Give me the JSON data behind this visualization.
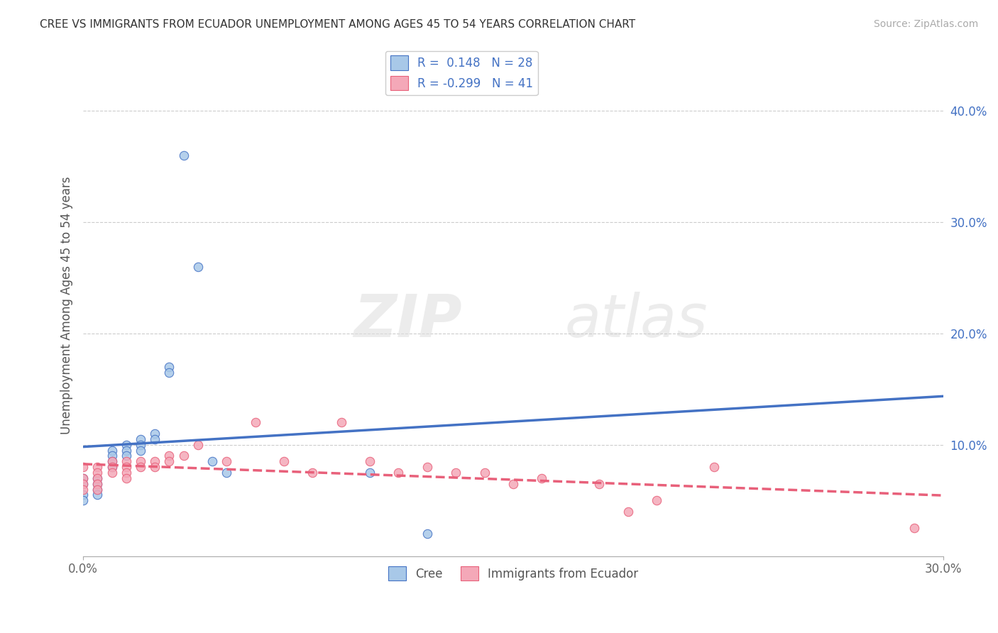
{
  "title": "CREE VS IMMIGRANTS FROM ECUADOR UNEMPLOYMENT AMONG AGES 45 TO 54 YEARS CORRELATION CHART",
  "source": "Source: ZipAtlas.com",
  "ylabel": "Unemployment Among Ages 45 to 54 years",
  "xlim": [
    0.0,
    0.3
  ],
  "ylim": [
    0.0,
    0.45
  ],
  "cree_color": "#A8C8E8",
  "ecuador_color": "#F4A8B8",
  "cree_line_color": "#4472C4",
  "ecuador_line_color": "#E8607A",
  "R_cree": 0.148,
  "N_cree": 28,
  "R_ecuador": -0.299,
  "N_ecuador": 41,
  "legend_text_color": "#4472C4",
  "cree_scatter": [
    [
      0.0,
      0.07
    ],
    [
      0.0,
      0.065
    ],
    [
      0.0,
      0.055
    ],
    [
      0.0,
      0.05
    ],
    [
      0.005,
      0.07
    ],
    [
      0.005,
      0.065
    ],
    [
      0.005,
      0.06
    ],
    [
      0.005,
      0.055
    ],
    [
      0.01,
      0.095
    ],
    [
      0.01,
      0.09
    ],
    [
      0.01,
      0.085
    ],
    [
      0.01,
      0.08
    ],
    [
      0.015,
      0.1
    ],
    [
      0.015,
      0.095
    ],
    [
      0.015,
      0.09
    ],
    [
      0.02,
      0.105
    ],
    [
      0.02,
      0.1
    ],
    [
      0.02,
      0.095
    ],
    [
      0.025,
      0.11
    ],
    [
      0.025,
      0.105
    ],
    [
      0.03,
      0.17
    ],
    [
      0.03,
      0.165
    ],
    [
      0.035,
      0.36
    ],
    [
      0.04,
      0.26
    ],
    [
      0.045,
      0.085
    ],
    [
      0.05,
      0.075
    ],
    [
      0.1,
      0.075
    ],
    [
      0.12,
      0.02
    ]
  ],
  "ecuador_scatter": [
    [
      0.0,
      0.08
    ],
    [
      0.0,
      0.07
    ],
    [
      0.0,
      0.065
    ],
    [
      0.0,
      0.06
    ],
    [
      0.005,
      0.08
    ],
    [
      0.005,
      0.075
    ],
    [
      0.005,
      0.07
    ],
    [
      0.005,
      0.065
    ],
    [
      0.005,
      0.06
    ],
    [
      0.01,
      0.085
    ],
    [
      0.01,
      0.08
    ],
    [
      0.01,
      0.075
    ],
    [
      0.015,
      0.085
    ],
    [
      0.015,
      0.08
    ],
    [
      0.015,
      0.075
    ],
    [
      0.015,
      0.07
    ],
    [
      0.02,
      0.085
    ],
    [
      0.02,
      0.08
    ],
    [
      0.025,
      0.085
    ],
    [
      0.025,
      0.08
    ],
    [
      0.03,
      0.09
    ],
    [
      0.03,
      0.085
    ],
    [
      0.035,
      0.09
    ],
    [
      0.04,
      0.1
    ],
    [
      0.05,
      0.085
    ],
    [
      0.06,
      0.12
    ],
    [
      0.07,
      0.085
    ],
    [
      0.08,
      0.075
    ],
    [
      0.09,
      0.12
    ],
    [
      0.1,
      0.085
    ],
    [
      0.11,
      0.075
    ],
    [
      0.12,
      0.08
    ],
    [
      0.13,
      0.075
    ],
    [
      0.14,
      0.075
    ],
    [
      0.15,
      0.065
    ],
    [
      0.16,
      0.07
    ],
    [
      0.18,
      0.065
    ],
    [
      0.19,
      0.04
    ],
    [
      0.2,
      0.05
    ],
    [
      0.22,
      0.08
    ],
    [
      0.29,
      0.025
    ]
  ]
}
